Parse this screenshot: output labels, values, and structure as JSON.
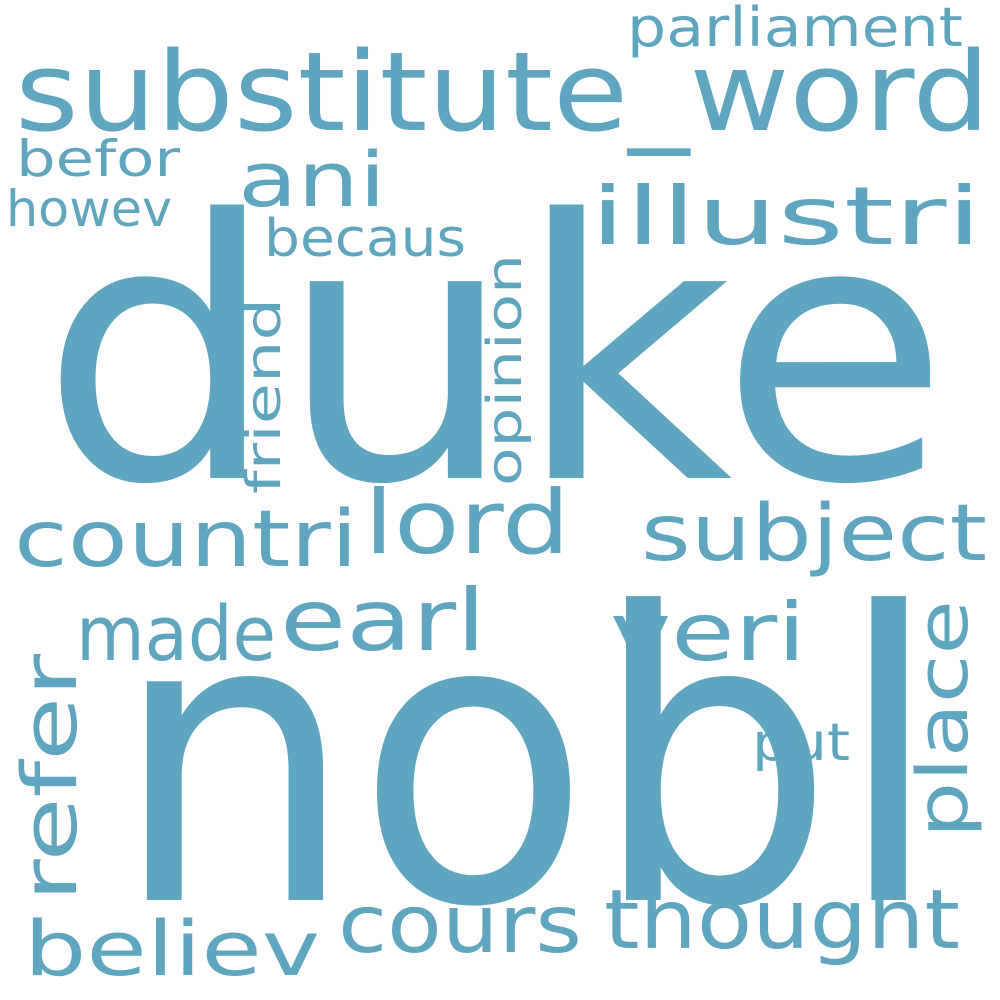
{
  "cloud": {
    "color": "#5fa5bf",
    "background": "#ffffff",
    "words": {
      "duke": "duke",
      "nobl": "nobl",
      "substitute_word": "substitute_word",
      "parliament": "parliament",
      "befor": "befor",
      "howev": "howev",
      "ani": "ani",
      "becaus": "becaus",
      "illustri": "illustri",
      "friend": "friend",
      "opinion": "opinion",
      "countri": "countri",
      "lord": "lord",
      "subject": "subject",
      "made": "made",
      "earl": "earl",
      "veri": "veri",
      "refer": "refer",
      "place": "place",
      "put": "put",
      "believ": "believ",
      "cours": "cours",
      "thought": "thought"
    }
  }
}
